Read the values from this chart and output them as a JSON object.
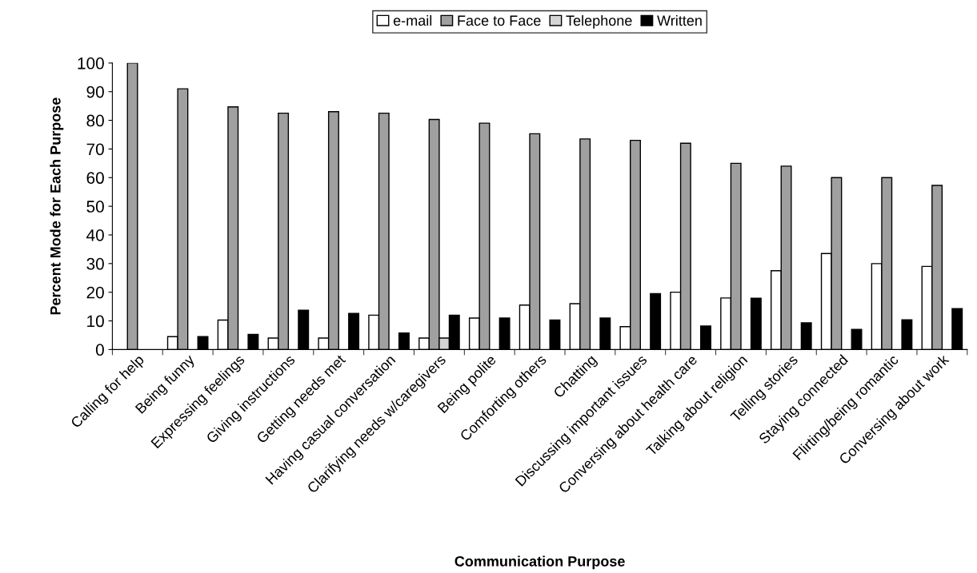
{
  "chart_data": {
    "type": "bar",
    "xlabel": "Communication Purpose",
    "ylabel": "Percent Mode for Each Purpose",
    "categories": [
      "Calling for help",
      "Being funny",
      "Expressing feelings",
      "Giving instructions",
      "Getting needs met",
      "Having casual conversation",
      "Clarifying needs w/caregivers",
      "Being polite",
      "Comforting others",
      "Chatting",
      "Discussing important issues",
      "Conversing about health care",
      "Talking about religion",
      "Telling stories",
      "Staying connected",
      "Flirting/being romantic",
      "Conversing about work"
    ],
    "series": [
      {
        "name": "e-mail",
        "color": "#ffffff",
        "values": [
          null,
          4.5,
          10.3,
          4,
          4,
          12,
          4,
          11,
          15.5,
          16,
          8,
          20,
          18,
          27.5,
          33.5,
          30,
          29
        ]
      },
      {
        "name": "Face to Face",
        "color": "#a0a0a0",
        "values": [
          100,
          91,
          84.7,
          82.5,
          83,
          82.5,
          80.3,
          79,
          75.3,
          73.5,
          73,
          72,
          65,
          64,
          60,
          60,
          57.3
        ]
      },
      {
        "name": "Telephone",
        "color": "#d4d4d4",
        "values": [
          null,
          null,
          null,
          null,
          null,
          null,
          4,
          null,
          null,
          null,
          null,
          null,
          null,
          null,
          null,
          null,
          null
        ]
      },
      {
        "name": "Written",
        "color": "#000000",
        "values": [
          null,
          4.5,
          5.3,
          13.7,
          12.6,
          5.8,
          12,
          11,
          10.3,
          11,
          19.5,
          8.2,
          17.9,
          9.3,
          7,
          10.4,
          14.3
        ]
      }
    ],
    "ylim": [
      0,
      100
    ],
    "yticks": [
      0,
      10,
      20,
      30,
      40,
      50,
      60,
      70,
      80,
      90,
      100
    ],
    "grid": false,
    "legend": "top"
  }
}
